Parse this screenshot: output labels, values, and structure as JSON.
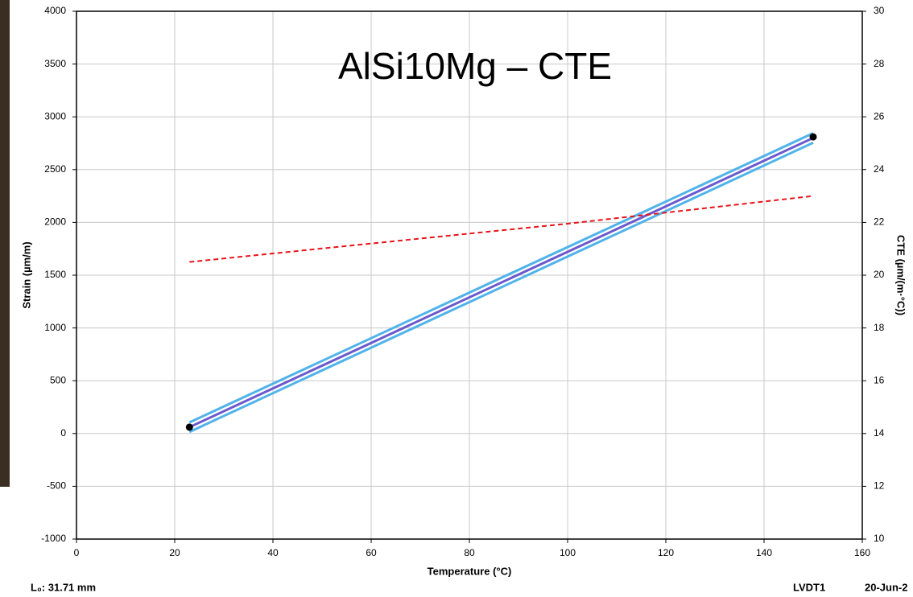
{
  "chart_data": {
    "type": "line",
    "title": "AlSi10Mg – CTE",
    "xlabel": "Temperature (°C)",
    "ylabel": "Strain (µm/m)",
    "y2label": "CTE (µm/(m·°C))",
    "xlim": [
      0,
      160
    ],
    "xticks": [
      0,
      20,
      40,
      60,
      80,
      100,
      120,
      140,
      160
    ],
    "ylim": [
      -1000,
      4000
    ],
    "yticks": [
      -1000,
      -500,
      0,
      500,
      1000,
      1500,
      2000,
      2500,
      3000,
      3500,
      4000
    ],
    "y2lim": [
      10,
      30
    ],
    "y2ticks": [
      10,
      12,
      14,
      16,
      18,
      20,
      22,
      24,
      26,
      28,
      30
    ],
    "grid": true,
    "series": [
      {
        "color": "#4fb3ea",
        "style": "line",
        "x": [
          23,
          40,
          60,
          80,
          100,
          120,
          140,
          150
        ],
        "values": [
          105,
          472,
          903,
          1335,
          1766,
          2197,
          2629,
          2845
        ]
      },
      {
        "color": "#4fb3ea",
        "style": "line",
        "x": [
          23,
          40,
          60,
          80,
          100,
          120,
          140,
          150
        ],
        "values": [
          15,
          382,
          813,
          1245,
          1676,
          2107,
          2539,
          2755
        ]
      },
      {
        "color": "#6a5acd",
        "style": "line",
        "x": [
          23,
          40,
          60,
          80,
          100,
          120,
          140,
          150
        ],
        "values": [
          60,
          427,
          858,
          1290,
          1721,
          2152,
          2584,
          2800
        ]
      },
      {
        "color": "#e8141a",
        "style": "dashed",
        "axis": "y2",
        "x": [
          23,
          60,
          100,
          150
        ],
        "values": [
          20.5,
          21.2,
          21.95,
          23.0
        ]
      },
      {
        "color": "#000000",
        "style": "markers",
        "x": [
          23,
          150
        ],
        "values": [
          60,
          2810
        ]
      }
    ]
  },
  "footer": {
    "left": "L₀: 31.71 mm",
    "middle": "LVDT1",
    "right": "20-Jun-2"
  }
}
